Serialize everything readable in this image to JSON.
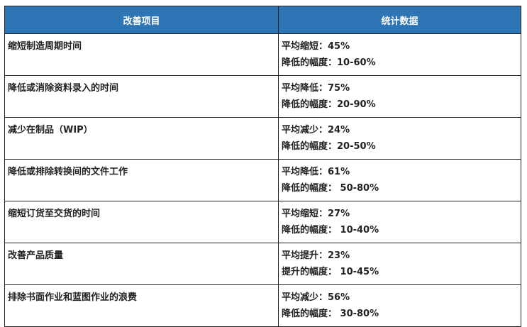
{
  "header": {
    "col1": "改善项目",
    "col2": "统计数据"
  },
  "rows": [
    {
      "item": "缩短制造周期时间",
      "avg": "平均缩短：45%",
      "range": "降低的幅度：10-60%"
    },
    {
      "item": "降低或消除资料录入的时间",
      "avg": "平均降低：75%",
      "range": "降低的幅度：20-90%"
    },
    {
      "item": "减少在制品（WIP）",
      "avg": "平均减少：24%",
      "range": "降低的幅度：20-50%"
    },
    {
      "item": "降低或排除转换间的文件工作",
      "avg": "平均降低：61%",
      "range": "降低的幅度： 50-80%"
    },
    {
      "item": "缩短订货至交货的时间",
      "avg": "平均缩短：27%",
      "range": "降低的幅度： 10-40%"
    },
    {
      "item": "改善产品质量",
      "avg": "平均提升：23%",
      "range": "提升的幅度： 10-45%"
    },
    {
      "item": "排除书面作业和蓝图作业的浪费",
      "avg": "平均减少：56%",
      "range": "降低的幅度： 30-80%"
    }
  ],
  "colors": {
    "header_bg": "#2e75b6"
  }
}
